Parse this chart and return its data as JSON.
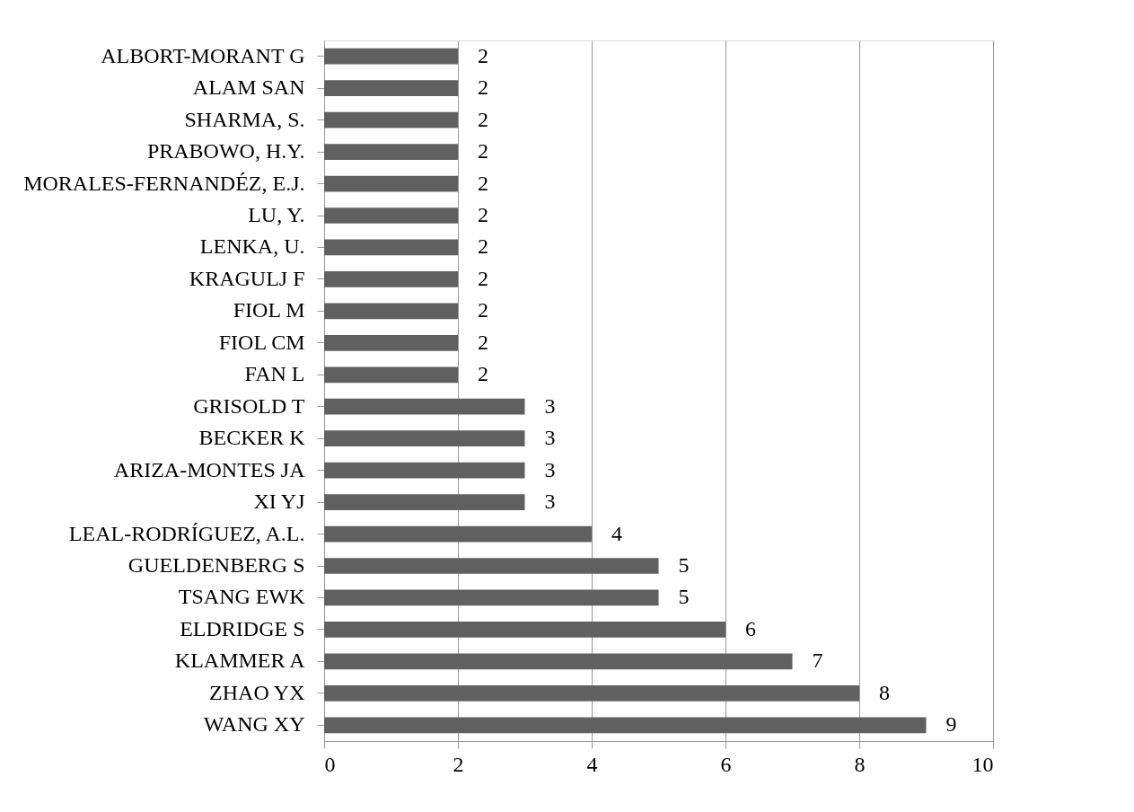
{
  "chart_data": {
    "type": "bar",
    "orientation": "horizontal",
    "categories": [
      "ALBORT-MORANT G",
      "ALAM SAN",
      "SHARMA, S.",
      "PRABOWO, H.Y.",
      "MORALES-FERNANDÉZ, E.J.",
      "LU, Y.",
      "LENKA, U.",
      "KRAGULJ F",
      "FIOL M",
      "FIOL CM",
      "FAN L",
      "GRISOLD T",
      "BECKER K",
      "ARIZA-MONTES JA",
      "XI YJ",
      "LEAL-RODRÍGUEZ, A.L.",
      "GUELDENBERG S",
      "TSANG EWK",
      "ELDRIDGE S",
      "KLAMMER A",
      "ZHAO YX",
      "WANG XY"
    ],
    "values": [
      2,
      2,
      2,
      2,
      2,
      2,
      2,
      2,
      2,
      2,
      2,
      3,
      3,
      3,
      3,
      4,
      5,
      5,
      6,
      7,
      8,
      9
    ],
    "color": "#606060",
    "xlim": [
      0,
      10
    ],
    "xticks": [
      0,
      2,
      4,
      6,
      8,
      10
    ],
    "grid": "x",
    "data_labels": true
  }
}
